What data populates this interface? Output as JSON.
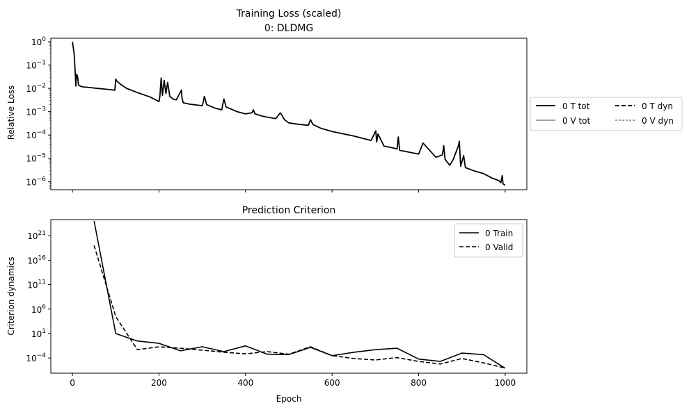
{
  "chart_data": [
    {
      "type": "line",
      "title": "Training Loss (scaled)\n0: DLDMG",
      "title_lines": [
        "Training Loss (scaled)",
        "0: DLDMG"
      ],
      "xlabel": "",
      "ylabel": "Relative Loss",
      "yscale": "log",
      "xlim": [
        -50,
        1050
      ],
      "ylim_exponents": [
        -6.35,
        0.15
      ],
      "y_ticks": [
        {
          "exp": 0,
          "label": "10^0"
        },
        {
          "exp": -1,
          "label": "10^-1"
        },
        {
          "exp": -2,
          "label": "10^-2"
        },
        {
          "exp": -3,
          "label": "10^-3"
        },
        {
          "exp": -4,
          "label": "10^-4"
        },
        {
          "exp": -5,
          "label": "10^-5"
        },
        {
          "exp": -6,
          "label": "10^-6"
        }
      ],
      "x_ticks_unlabeled": [
        0,
        200,
        400,
        600,
        800,
        1000
      ],
      "legend_position": "outside-right",
      "legend_columns": 2,
      "series": [
        {
          "name": "0 T tot",
          "style": "solid-thick",
          "x": [
            0,
            4,
            8,
            9,
            10,
            12,
            14,
            18,
            25,
            40,
            60,
            80,
            98,
            100,
            102,
            110,
            125,
            150,
            180,
            200,
            202,
            205,
            208,
            212,
            216,
            220,
            225,
            232,
            240,
            252,
            253,
            256,
            270,
            300,
            302,
            305,
            310,
            330,
            345,
            350,
            355,
            380,
            400,
            415,
            418,
            422,
            440,
            470,
            480,
            484,
            490,
            500,
            520,
            545,
            550,
            556,
            575,
            600,
            650,
            690,
            701,
            703,
            706,
            720,
            740,
            750,
            753,
            756,
            780,
            800,
            810,
            840,
            855,
            858,
            861,
            872,
            880,
            892,
            894,
            897,
            904,
            908,
            930,
            950,
            970,
            980,
            985,
            990,
            993,
            995,
            1000
          ],
          "y": [
            1.0,
            0.3,
            0.0125,
            0.03,
            0.04,
            0.03,
            0.014,
            0.0125,
            0.0115,
            0.0108,
            0.0099,
            0.0091,
            0.0083,
            0.025,
            0.021,
            0.0155,
            0.01,
            0.0066,
            0.0042,
            0.0027,
            0.0045,
            0.028,
            0.005,
            0.022,
            0.006,
            0.018,
            0.0045,
            0.0035,
            0.0032,
            0.0085,
            0.004,
            0.0024,
            0.0021,
            0.0018,
            0.0025,
            0.0045,
            0.002,
            0.0014,
            0.0012,
            0.0035,
            0.0016,
            0.001,
            0.0008,
            0.0009,
            0.0012,
            0.0008,
            0.00063,
            0.0005,
            0.00088,
            0.0007,
            0.00045,
            0.00033,
            0.00029,
            0.00026,
            0.00045,
            0.00028,
            0.00019,
            0.00014,
            9e-05,
            5.8e-05,
            0.00015,
            5e-05,
            0.00011,
            3.3e-05,
            2.8e-05,
            2.5e-05,
            8.2e-05,
            2.2e-05,
            1.8e-05,
            1.5e-05,
            4.5e-05,
            1.1e-05,
            1.4e-05,
            3.5e-05,
            9e-06,
            5e-06,
            9e-06,
            3.5e-05,
            5.4e-05,
            4.5e-06,
            1.3e-05,
            4e-06,
            2.8e-06,
            2.2e-06,
            1.4e-06,
            1.2e-06,
            1.1e-06,
            9e-07,
            1.8e-06,
            8e-07,
            7e-07
          ]
        },
        {
          "name": "0 V tot",
          "style": "solid-thin",
          "x": [
            0,
            4,
            8,
            9,
            10,
            12,
            14,
            18,
            25,
            40,
            60,
            80,
            98,
            100,
            102,
            110,
            125,
            150,
            180,
            200,
            202,
            205,
            208,
            212,
            216,
            220,
            225,
            232,
            240,
            252,
            253,
            256,
            270,
            300,
            302,
            305,
            310,
            330,
            345,
            350,
            355,
            380,
            400,
            415,
            418,
            422,
            440,
            470,
            480,
            484,
            490,
            500,
            520,
            545,
            550,
            556,
            575,
            600,
            650,
            690,
            701,
            703,
            706,
            720,
            740,
            750,
            753,
            756,
            780,
            800,
            810,
            840,
            855,
            858,
            861,
            872,
            880,
            892,
            894,
            897,
            904,
            908,
            930,
            950,
            970,
            980,
            985,
            990,
            993,
            995,
            1000
          ],
          "y": [
            1.0,
            0.3,
            0.0125,
            0.03,
            0.04,
            0.03,
            0.014,
            0.0125,
            0.0115,
            0.0108,
            0.0099,
            0.0091,
            0.0083,
            0.025,
            0.021,
            0.0155,
            0.01,
            0.0066,
            0.0042,
            0.0027,
            0.0045,
            0.028,
            0.005,
            0.022,
            0.006,
            0.018,
            0.0045,
            0.0035,
            0.0032,
            0.0085,
            0.004,
            0.0024,
            0.0021,
            0.0018,
            0.0025,
            0.0045,
            0.002,
            0.0014,
            0.0012,
            0.0035,
            0.0016,
            0.001,
            0.0008,
            0.0009,
            0.0012,
            0.0008,
            0.00063,
            0.0005,
            0.00088,
            0.0007,
            0.00045,
            0.00033,
            0.00029,
            0.00026,
            0.00045,
            0.00028,
            0.00019,
            0.00014,
            9e-05,
            5.8e-05,
            0.00015,
            5e-05,
            0.00011,
            3.3e-05,
            2.8e-05,
            2.5e-05,
            8.2e-05,
            2.2e-05,
            1.8e-05,
            1.5e-05,
            4.5e-05,
            1.1e-05,
            1.4e-05,
            3.5e-05,
            9e-06,
            5e-06,
            9e-06,
            3.5e-05,
            5.4e-05,
            4.5e-06,
            1.3e-05,
            4e-06,
            2.8e-06,
            2.2e-06,
            1.4e-06,
            1.2e-06,
            1.1e-06,
            9e-07,
            1.8e-06,
            8e-07,
            7e-07
          ]
        },
        {
          "name": "0 T dyn",
          "style": "dashed-thick",
          "x": [],
          "y": []
        },
        {
          "name": "0 V dyn",
          "style": "dashed-thin",
          "x": [],
          "y": []
        }
      ]
    },
    {
      "type": "line",
      "title": "Prediction Criterion",
      "xlabel": "Epoch",
      "ylabel": "Criterion dynamics",
      "yscale": "log",
      "xlim": [
        -50,
        1050
      ],
      "ylim_exponents": [
        -7.1,
        24.3
      ],
      "x_ticks": [
        {
          "value": 0,
          "label": "0"
        },
        {
          "value": 200,
          "label": "200"
        },
        {
          "value": 400,
          "label": "400"
        },
        {
          "value": 600,
          "label": "600"
        },
        {
          "value": 800,
          "label": "800"
        },
        {
          "value": 1000,
          "label": "1000"
        }
      ],
      "y_ticks": [
        {
          "exp": 21,
          "label": "10^21"
        },
        {
          "exp": 16,
          "label": "10^16"
        },
        {
          "exp": 11,
          "label": "10^11"
        },
        {
          "exp": 6,
          "label": "10^6"
        },
        {
          "exp": 1,
          "label": "10^1"
        },
        {
          "exp": -4,
          "label": "10^-4"
        }
      ],
      "legend_position": "upper right",
      "series": [
        {
          "name": "0 Train",
          "style": "solid",
          "x": [
            50,
            100,
            150,
            200,
            250,
            300,
            350,
            400,
            450,
            500,
            550,
            600,
            650,
            700,
            750,
            800,
            850,
            900,
            950,
            1000
          ],
          "y": [
            1e+24,
            10,
            0.3,
            0.1,
            0.003,
            0.02,
            0.002,
            0.03,
            0.0006,
            0.0005,
            0.015,
            0.0003,
            0.0015,
            0.005,
            0.01,
            6e-05,
            2e-05,
            0.001,
            0.0005,
            8e-07
          ]
        },
        {
          "name": "0 Valid",
          "style": "dashed",
          "x": [
            50,
            100,
            150,
            200,
            250,
            300,
            350,
            400,
            450,
            500,
            550,
            600,
            650,
            700,
            750,
            800,
            850,
            900,
            950,
            1000
          ],
          "y": [
            1e+19,
            30000.0,
            0.005,
            0.02,
            0.01,
            0.004,
            0.0015,
            0.0007,
            0.002,
            0.0006,
            0.02,
            0.0003,
            8e-05,
            4e-05,
            0.00012,
            2e-05,
            6e-06,
            8e-05,
            1e-05,
            9e-07
          ]
        }
      ]
    }
  ]
}
